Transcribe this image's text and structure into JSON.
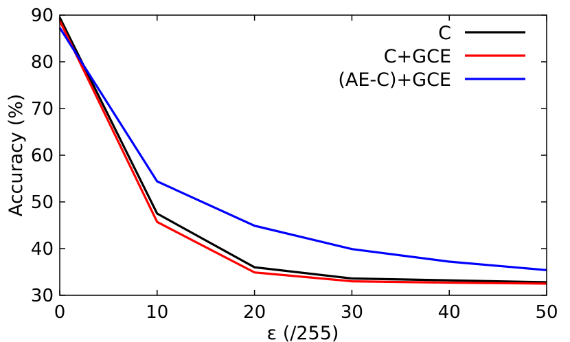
{
  "chart_data": {
    "type": "line",
    "xlabel": "ε (/255)",
    "ylabel": "Accuracy (%)",
    "xlim": [
      0,
      50
    ],
    "ylim": [
      30,
      90
    ],
    "x_ticks": [
      "0",
      "10",
      "20",
      "30",
      "40",
      "50"
    ],
    "y_ticks": [
      "30",
      "40",
      "50",
      "60",
      "70",
      "80",
      "90"
    ],
    "grid": false,
    "legend_position": "top-right",
    "x": [
      0,
      10,
      20,
      30,
      40,
      50
    ],
    "series": [
      {
        "name": "C",
        "color": "#000000",
        "values": [
          89.5,
          47.5,
          36.0,
          33.6,
          33.2,
          32.8
        ]
      },
      {
        "name": "C+GCE",
        "color": "#ff0000",
        "values": [
          88.8,
          45.7,
          34.9,
          33.0,
          32.7,
          32.5
        ]
      },
      {
        "name": "(AE-C)+GCE",
        "color": "#0000ff",
        "values": [
          87.3,
          54.4,
          44.9,
          39.9,
          37.2,
          35.4
        ]
      }
    ]
  }
}
